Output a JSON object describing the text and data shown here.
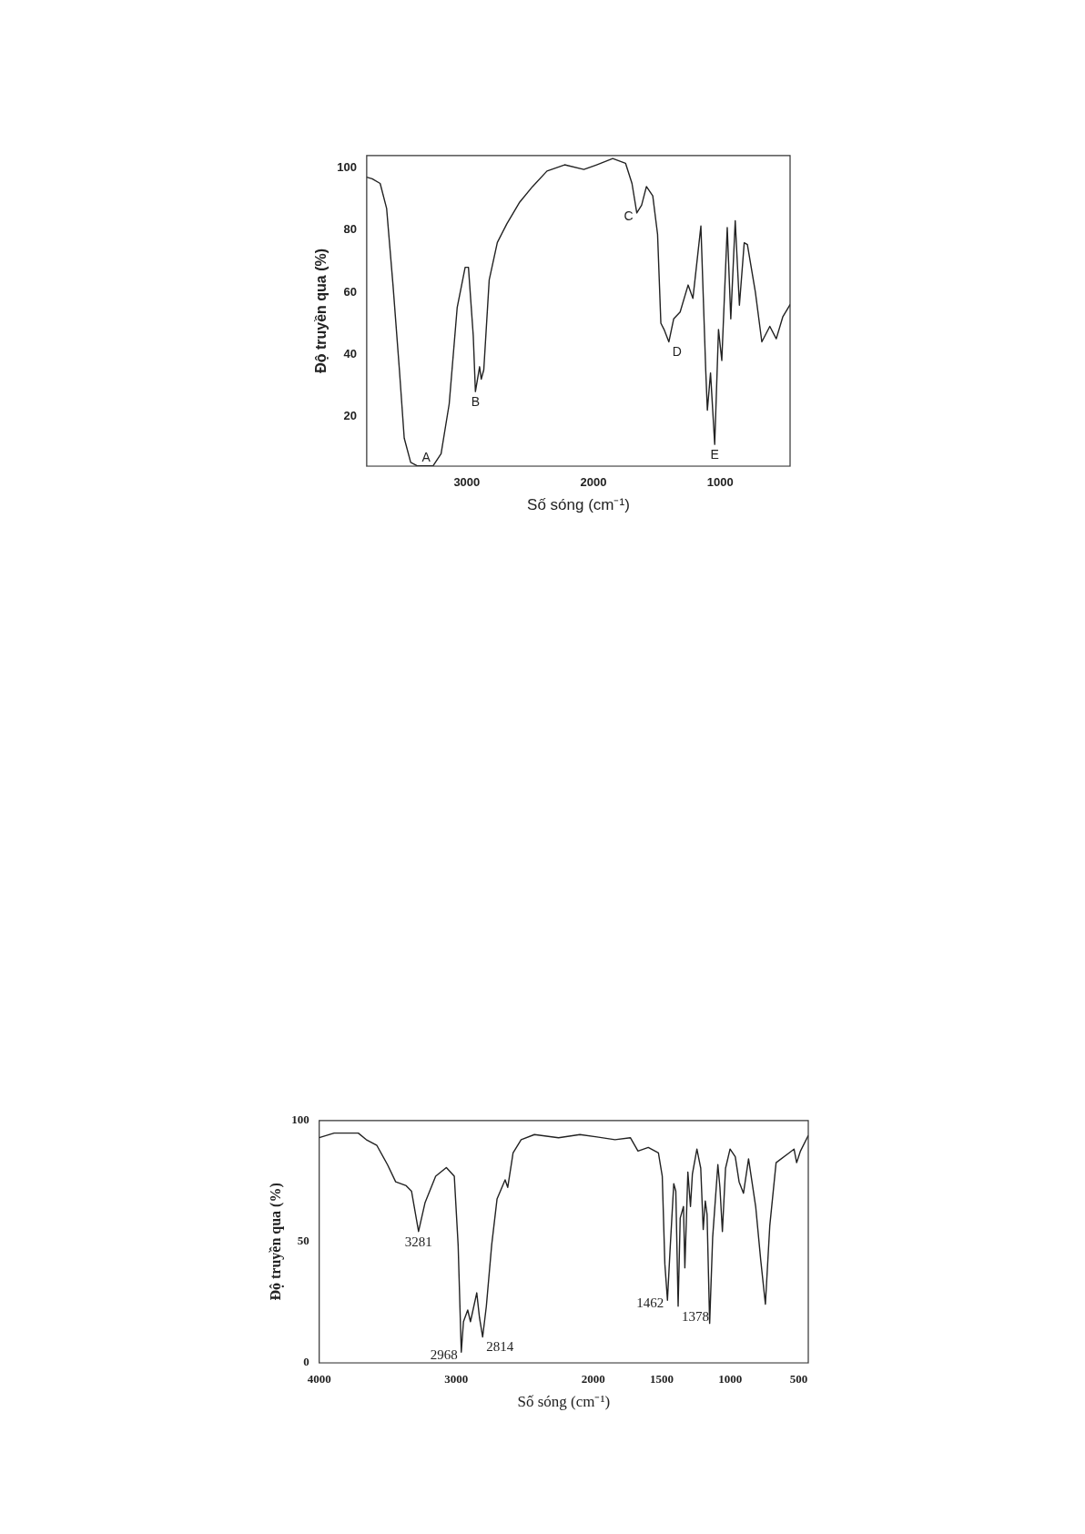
{
  "chart_data": [
    {
      "type": "line",
      "xlabel": "Số sóng (cm⁻¹)",
      "ylabel": "Độ truyền qua (%)",
      "xlim": [
        3790,
        448
      ],
      "ylim": [
        4,
        104
      ],
      "xticks": [
        3000,
        2000,
        1000
      ],
      "yticks": [
        20,
        40,
        60,
        80,
        100
      ],
      "grid": false,
      "legend": false,
      "marker": "none",
      "line_style": "solid",
      "series": [
        {
          "color": "#222222",
          "x": [
            3790,
            3747,
            3684,
            3633,
            3582,
            3532,
            3494,
            3443,
            3392,
            3266,
            3203,
            3139,
            3076,
            3013,
            2987,
            2949,
            2932,
            2899,
            2886,
            2866,
            2823,
            2759,
            2684,
            2582,
            2481,
            2367,
            2228,
            2076,
            1975,
            1848,
            1747,
            1696,
            1658,
            1620,
            1582,
            1532,
            1494,
            1468,
            1443,
            1405,
            1367,
            1316,
            1253,
            1215,
            1152,
            1114,
            1101,
            1076,
            1043,
            1013,
            987,
            944,
            916,
            881,
            848,
            810,
            785,
            722,
            671,
            608,
            557,
            506,
            448
          ],
          "values": [
            97,
            96.5,
            95,
            87,
            62,
            35,
            13,
            5.2,
            4.1,
            4.1,
            8,
            24,
            55,
            68,
            68,
            46,
            28,
            36,
            32,
            35,
            64,
            76,
            82,
            89,
            94,
            99,
            101,
            99.5,
            101,
            103,
            101.5,
            95,
            85.5,
            88,
            94,
            91,
            78.6,
            50,
            48,
            44,
            51.4,
            53.6,
            62.3,
            58,
            81.3,
            35,
            22,
            34,
            11,
            48,
            38,
            80.8,
            51.4,
            83,
            55.8,
            75.9,
            75.3,
            60,
            44,
            49,
            45,
            52,
            56
          ]
        }
      ],
      "annotations": [
        {
          "text": "A",
          "x": 3266,
          "y": 4.1
        },
        {
          "text": "B",
          "x": 2932,
          "y": 28
        },
        {
          "text": "C",
          "x": 1658,
          "y": 85.5
        },
        {
          "text": "D",
          "x": 1405,
          "y": 44
        },
        {
          "text": "E",
          "x": 1043,
          "y": 11
        }
      ]
    },
    {
      "type": "line",
      "xlabel": "Số sóng (cm⁻¹)",
      "ylabel": "Độ truyền qua (%)",
      "xlim": [
        4000,
        430
      ],
      "ylim": [
        0,
        100
      ],
      "xticks": [
        4000,
        3000,
        2000,
        1500,
        1000,
        500
      ],
      "yticks": [
        0,
        50,
        100
      ],
      "grid": false,
      "legend": false,
      "marker": "none",
      "line_style": "solid",
      "series": [
        {
          "color": "#222222",
          "x": [
            4000,
            3891,
            3715,
            3657,
            3579,
            3501,
            3442,
            3365,
            3326,
            3275,
            3228,
            3150,
            3072,
            3014,
            2986,
            2963,
            2947,
            2916,
            2896,
            2850,
            2830,
            2807,
            2780,
            2741,
            2702,
            2643,
            2624,
            2585,
            2526,
            2429,
            2253,
            2097,
            1972,
            1841,
            1729,
            1673,
            1598,
            1524,
            1496,
            1477,
            1458,
            1440,
            1412,
            1397,
            1380,
            1365,
            1341,
            1331,
            1309,
            1290,
            1276,
            1243,
            1215,
            1197,
            1182,
            1169,
            1150,
            1128,
            1090,
            1075,
            1057,
            1034,
            1001,
            963,
            935,
            903,
            866,
            814,
            777,
            743,
            711,
            665,
            571,
            534,
            515,
            487,
            431
          ],
          "values": [
            92.9,
            94.8,
            94.8,
            92.1,
            89.7,
            81.7,
            74.7,
            73.1,
            70.8,
            54.2,
            66,
            77,
            80.6,
            77,
            48.7,
            4.4,
            17,
            21.8,
            17,
            28.9,
            18.6,
            10.7,
            23.4,
            48.7,
            67.6,
            75.5,
            72.4,
            86.6,
            92.1,
            94.2,
            92.9,
            94.2,
            93.2,
            92.1,
            92.9,
            87.4,
            88.9,
            86.6,
            77.1,
            40.8,
            25.8,
            45.5,
            73.9,
            70.8,
            23.4,
            59.7,
            64.5,
            39.2,
            78.7,
            64.5,
            77.9,
            88.2,
            80.3,
            55,
            66.8,
            61.3,
            16.3,
            51.8,
            81.8,
            72.4,
            54.2,
            80.3,
            88.2,
            85,
            74.7,
            70,
            84.2,
            64.5,
            42.3,
            24.2,
            56.6,
            82.6,
            86.6,
            88.2,
            82.6,
            87.4,
            93.7
          ]
        }
      ],
      "annotations": [
        {
          "text": "3281",
          "x": 3275,
          "y": 54.2
        },
        {
          "text": "2968",
          "x": 2963,
          "y": 4.4
        },
        {
          "text": "2814",
          "x": 2807,
          "y": 10.7
        },
        {
          "text": "1462",
          "x": 1458,
          "y": 25.8
        },
        {
          "text": "1378",
          "x": 1380,
          "y": 23.4
        }
      ]
    }
  ]
}
